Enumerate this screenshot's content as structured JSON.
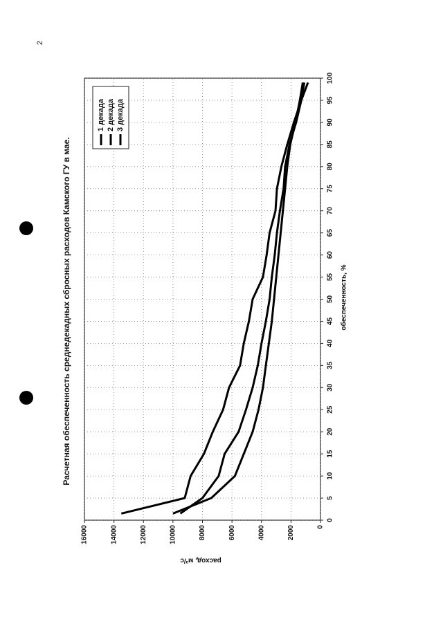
{
  "page_number": "2",
  "chart_data": {
    "type": "line",
    "title": "Расчетная обеспеченность среднедекадных сбросных расходов Камского ГУ в мае.",
    "x_label": "обеспеченность, %",
    "y_label": "расход, м³/с",
    "x": [
      1.5,
      5,
      10,
      15,
      20,
      25,
      30,
      35,
      40,
      45,
      50,
      55,
      60,
      65,
      70,
      75,
      80,
      85,
      90,
      95,
      99
    ],
    "series": [
      {
        "name": "1 декада",
        "color": "#000000",
        "values": [
          13500,
          9200,
          8800,
          7900,
          7300,
          6600,
          6200,
          5450,
          5200,
          4850,
          4600,
          3900,
          3650,
          3450,
          3050,
          2950,
          2650,
          2250,
          1800,
          1300,
          850
        ]
      },
      {
        "name": "2 декада",
        "color": "#000000",
        "values": [
          9500,
          8000,
          6900,
          6500,
          5550,
          5050,
          4600,
          4250,
          4000,
          3700,
          3450,
          3300,
          3100,
          2950,
          2750,
          2500,
          2400,
          2100,
          1650,
          1300,
          1100
        ]
      },
      {
        "name": "3 декада",
        "color": "#000000",
        "values": [
          10000,
          7400,
          5800,
          5200,
          4600,
          4200,
          3900,
          3700,
          3500,
          3300,
          3150,
          3000,
          2850,
          2700,
          2550,
          2400,
          2250,
          2050,
          1700,
          1400,
          1200
        ]
      }
    ],
    "xlim": [
      0,
      100
    ],
    "xticks": [
      0,
      5,
      10,
      15,
      20,
      25,
      30,
      35,
      40,
      45,
      50,
      55,
      60,
      65,
      70,
      75,
      80,
      85,
      90,
      95,
      100
    ],
    "ylim": [
      0,
      16000
    ],
    "yticks": [
      0,
      2000,
      4000,
      6000,
      8000,
      10000,
      12000,
      14000,
      16000
    ],
    "grid": true,
    "legend": "upper-left"
  }
}
